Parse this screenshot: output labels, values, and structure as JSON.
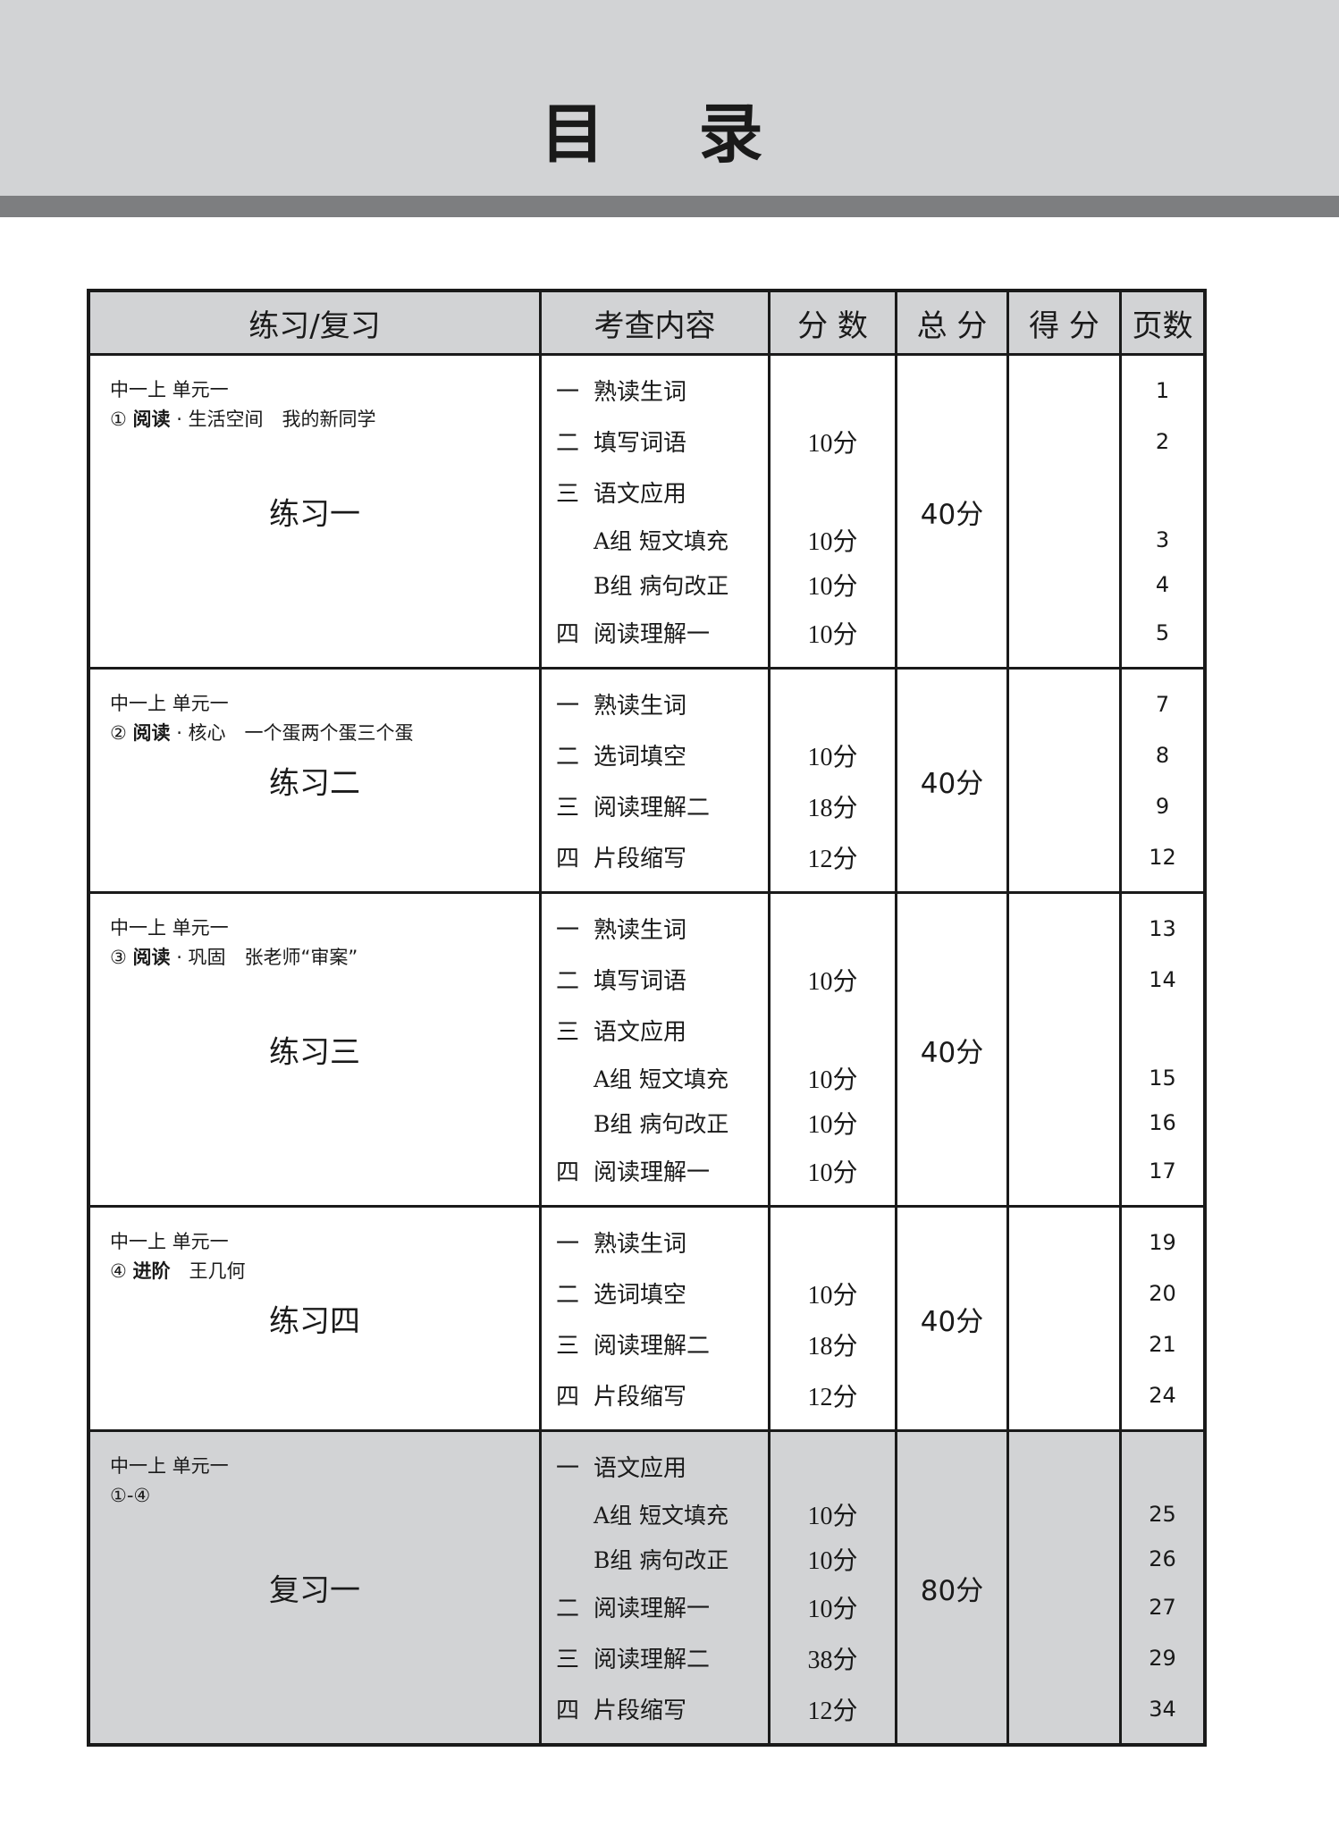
{
  "title": "目 录",
  "headers": [
    "练习/复习",
    "考查内容",
    "分 数",
    "总 分",
    "得 分",
    "页数"
  ],
  "groups": [
    {
      "unit": "中一上 单元一",
      "lesson_num": "①",
      "lesson_type": "阅读",
      "lesson_rest": " · 生活空间　我的新同学",
      "name": "练习一",
      "total": "40分",
      "shaded": false,
      "items": [
        {
          "num": "一",
          "label": "熟读生词",
          "score": "",
          "page": "1",
          "sub": false
        },
        {
          "num": "二",
          "label": "填写词语",
          "score": "10分",
          "page": "2",
          "sub": false
        },
        {
          "num": "三",
          "label": "语文应用",
          "score": "",
          "page": "",
          "sub": false
        },
        {
          "num": "",
          "label": "A组 短文填充",
          "score": "10分",
          "page": "3",
          "sub": true
        },
        {
          "num": "",
          "label": "B组 病句改正",
          "score": "10分",
          "page": "4",
          "sub": true
        },
        {
          "num": "四",
          "label": "阅读理解一",
          "score": "10分",
          "page": "5",
          "sub": false
        }
      ]
    },
    {
      "unit": "中一上 单元一",
      "lesson_num": "②",
      "lesson_type": "阅读",
      "lesson_rest": " · 核心　一个蛋两个蛋三个蛋",
      "name": "练习二",
      "total": "40分",
      "shaded": false,
      "items": [
        {
          "num": "一",
          "label": "熟读生词",
          "score": "",
          "page": "7",
          "sub": false
        },
        {
          "num": "二",
          "label": "选词填空",
          "score": "10分",
          "page": "8",
          "sub": false
        },
        {
          "num": "三",
          "label": "阅读理解二",
          "score": "18分",
          "page": "9",
          "sub": false
        },
        {
          "num": "四",
          "label": "片段缩写",
          "score": "12分",
          "page": "12",
          "sub": false
        }
      ]
    },
    {
      "unit": "中一上 单元一",
      "lesson_num": "③",
      "lesson_type": "阅读",
      "lesson_rest": " · 巩固　张老师“审案”",
      "name": "练习三",
      "total": "40分",
      "shaded": false,
      "items": [
        {
          "num": "一",
          "label": "熟读生词",
          "score": "",
          "page": "13",
          "sub": false
        },
        {
          "num": "二",
          "label": "填写词语",
          "score": "10分",
          "page": "14",
          "sub": false
        },
        {
          "num": "三",
          "label": "语文应用",
          "score": "",
          "page": "",
          "sub": false
        },
        {
          "num": "",
          "label": "A组 短文填充",
          "score": "10分",
          "page": "15",
          "sub": true
        },
        {
          "num": "",
          "label": "B组 病句改正",
          "score": "10分",
          "page": "16",
          "sub": true
        },
        {
          "num": "四",
          "label": "阅读理解一",
          "score": "10分",
          "page": "17",
          "sub": false
        }
      ]
    },
    {
      "unit": "中一上 单元一",
      "lesson_num": "④",
      "lesson_type": "进阶",
      "lesson_rest": "　王几何",
      "name": "练习四",
      "total": "40分",
      "shaded": false,
      "items": [
        {
          "num": "一",
          "label": "熟读生词",
          "score": "",
          "page": "19",
          "sub": false
        },
        {
          "num": "二",
          "label": "选词填空",
          "score": "10分",
          "page": "20",
          "sub": false
        },
        {
          "num": "三",
          "label": "阅读理解二",
          "score": "18分",
          "page": "21",
          "sub": false
        },
        {
          "num": "四",
          "label": "片段缩写",
          "score": "12分",
          "page": "24",
          "sub": false
        }
      ]
    },
    {
      "unit": "中一上 单元一",
      "lesson_num": "①-④",
      "lesson_type": "",
      "lesson_rest": "",
      "name": "复习一",
      "total": "80分",
      "shaded": true,
      "items": [
        {
          "num": "一",
          "label": "语文应用",
          "score": "",
          "page": "",
          "sub": false
        },
        {
          "num": "",
          "label": "A组 短文填充",
          "score": "10分",
          "page": "25",
          "sub": true
        },
        {
          "num": "",
          "label": "B组 病句改正",
          "score": "10分",
          "page": "26",
          "sub": true
        },
        {
          "num": "二",
          "label": "阅读理解一",
          "score": "10分",
          "page": "27",
          "sub": false
        },
        {
          "num": "三",
          "label": "阅读理解二",
          "score": "38分",
          "page": "29",
          "sub": false
        },
        {
          "num": "四",
          "label": "片段缩写",
          "score": "12分",
          "page": "34",
          "sub": false
        }
      ]
    }
  ]
}
